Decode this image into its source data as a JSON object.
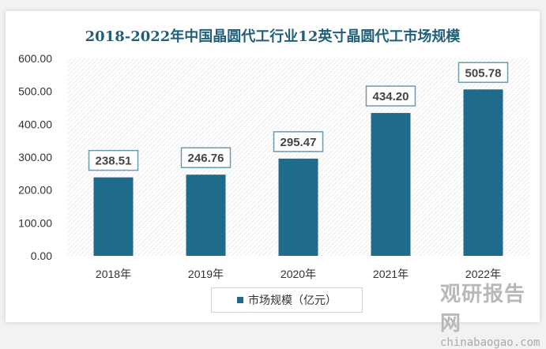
{
  "chart_data": {
    "type": "bar",
    "title": "2018-2022年中国晶圆代工行业12英寸晶圆代工市场规模",
    "categories": [
      "2018年",
      "2019年",
      "2020年",
      "2021年",
      "2022年"
    ],
    "series": [
      {
        "name": "市场规模（亿元）",
        "values": [
          238.51,
          246.76,
          295.47,
          434.2,
          505.78
        ]
      }
    ],
    "data_labels": [
      "238.51",
      "246.76",
      "295.47",
      "434.20",
      "505.78"
    ],
    "yticks": [
      "0.00",
      "100.00",
      "200.00",
      "300.00",
      "400.00",
      "500.00",
      "600.00"
    ],
    "ylim": [
      0,
      600
    ],
    "grid": false,
    "legend": "bottom",
    "bar_color": "#1f6b8c",
    "xlabel": "",
    "ylabel": ""
  },
  "watermark": {
    "cn": "观研报告网",
    "en": "chinabaogao.com"
  }
}
